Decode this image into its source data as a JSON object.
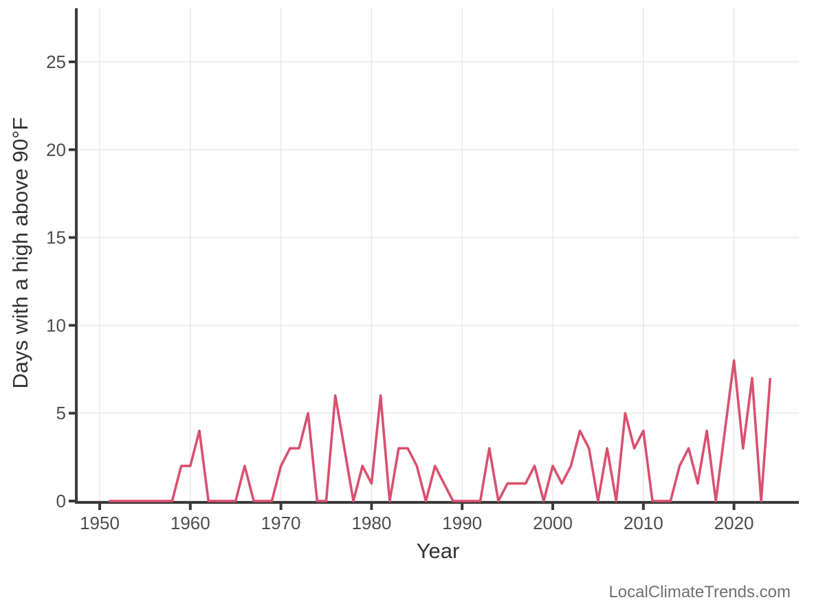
{
  "watermark": {
    "text": "LocalClimateTrends.com"
  },
  "colors": {
    "line": "#d9506e",
    "axis": "#3a3a3a",
    "grid": "#e9e9e9",
    "tick_label": "#4d4d4d",
    "axis_title": "#333333",
    "watermark": "#707070",
    "background": "#ffffff"
  },
  "chart_data": {
    "type": "line",
    "title": "",
    "xlabel": "Year",
    "ylabel": "Days with a high above 90°F",
    "legend": "none",
    "grid": "major",
    "x_ticks": [
      1950,
      1960,
      1970,
      1980,
      1990,
      2000,
      2010,
      2020
    ],
    "y_ticks": [
      0,
      5,
      10,
      15,
      20,
      25
    ],
    "xlim": [
      1947.4,
      2027.2
    ],
    "ylim": [
      0,
      28
    ],
    "series": [
      {
        "name": "days-above-90F",
        "x": [
          1951,
          1952,
          1953,
          1954,
          1955,
          1956,
          1957,
          1958,
          1959,
          1960,
          1961,
          1962,
          1963,
          1964,
          1965,
          1966,
          1967,
          1968,
          1969,
          1970,
          1971,
          1972,
          1973,
          1974,
          1975,
          1976,
          1977,
          1978,
          1979,
          1980,
          1981,
          1982,
          1983,
          1984,
          1985,
          1986,
          1987,
          1988,
          1989,
          1990,
          1991,
          1992,
          1993,
          1994,
          1995,
          1996,
          1997,
          1998,
          1999,
          2000,
          2001,
          2002,
          2003,
          2004,
          2005,
          2006,
          2007,
          2008,
          2009,
          2010,
          2011,
          2012,
          2013,
          2014,
          2015,
          2016,
          2017,
          2018,
          2019,
          2020,
          2021,
          2022,
          2023,
          2024
        ],
        "values": [
          0,
          0,
          0,
          0,
          0,
          0,
          0,
          0,
          2,
          2,
          4,
          0,
          0,
          0,
          0,
          2,
          0,
          0,
          0,
          2,
          3,
          3,
          5,
          0,
          0,
          6,
          3,
          0,
          2,
          1,
          6,
          0,
          3,
          3,
          2,
          0,
          2,
          1,
          0,
          0,
          0,
          0,
          3,
          0,
          1,
          1,
          1,
          2,
          0,
          2,
          1,
          2,
          4,
          3,
          0,
          3,
          0,
          5,
          3,
          4,
          0,
          0,
          0,
          2,
          3,
          1,
          4,
          0,
          4,
          8,
          3,
          7,
          0,
          7
        ]
      }
    ]
  }
}
